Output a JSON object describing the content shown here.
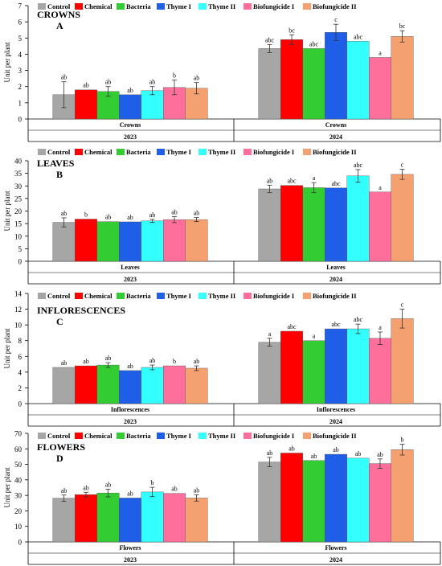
{
  "legend": [
    "Control",
    "Chemical",
    "Bacteria",
    "Thyme I",
    "Thyme II",
    "Biofungicide I",
    "Biofungicide II"
  ],
  "colors": [
    "#a6a6a6",
    "#ff0000",
    "#33cc33",
    "#1f5ee6",
    "#33ffff",
    "#ff6f9c",
    "#f4a070"
  ],
  "chart_data": [
    {
      "type": "bar",
      "title": "CROWNS",
      "panel_letter": "A",
      "ylabel": "Unit per plant",
      "ylim": [
        0,
        7
      ],
      "yticks": [
        0,
        1,
        2,
        3,
        4,
        5,
        6,
        7
      ],
      "groups": [
        {
          "category": "Crowns",
          "year": "2023",
          "values": [
            1.5,
            1.8,
            1.7,
            1.5,
            1.75,
            1.95,
            1.9
          ],
          "errors": [
            0.8,
            0.0,
            0.3,
            0.0,
            0.25,
            0.45,
            0.35
          ],
          "labels": [
            "ab",
            "ab",
            "ab",
            "ab",
            "ab",
            "b",
            "ab"
          ]
        },
        {
          "category": "Crowns",
          "year": "2024",
          "values": [
            4.35,
            4.9,
            4.35,
            5.35,
            4.8,
            3.8,
            5.1
          ],
          "errors": [
            0.25,
            0.3,
            0.0,
            0.5,
            0.0,
            0.0,
            0.35
          ],
          "labels": [
            "abc",
            "bc",
            "abc",
            "c",
            "abc",
            "a",
            "bc"
          ]
        }
      ]
    },
    {
      "type": "bar",
      "title": "LEAVES",
      "panel_letter": "B",
      "ylabel": "Unit per plant",
      "ylim": [
        0,
        40
      ],
      "yticks": [
        0,
        5,
        10,
        15,
        20,
        25,
        30,
        35,
        40
      ],
      "groups": [
        {
          "category": "Leaves",
          "year": "2023",
          "values": [
            15.5,
            16.8,
            15.8,
            15.7,
            16.1,
            16.6,
            16.6
          ],
          "errors": [
            1.8,
            0.0,
            0.0,
            0.0,
            0.6,
            1.2,
            0.8
          ],
          "labels": [
            "ab",
            "b",
            "ab",
            "ab",
            "ab",
            "ab",
            "ab"
          ]
        },
        {
          "category": "Leaves",
          "year": "2024",
          "values": [
            28.8,
            30.2,
            29.3,
            29.2,
            34.0,
            27.6,
            34.6
          ],
          "errors": [
            1.5,
            0.0,
            2.0,
            0.0,
            2.5,
            0.0,
            2.0
          ],
          "labels": [
            "ab",
            "abc",
            "a",
            "abc",
            "abc",
            "a",
            "c"
          ]
        }
      ]
    },
    {
      "type": "bar",
      "title": "INFLORESCENCES",
      "panel_letter": "C",
      "ylabel": "Unit per plant",
      "ylim": [
        0,
        14
      ],
      "yticks": [
        0,
        2,
        4,
        6,
        8,
        10,
        12,
        14
      ],
      "groups": [
        {
          "category": "Inflorescences",
          "year": "2023",
          "values": [
            4.6,
            4.8,
            4.9,
            4.2,
            4.6,
            4.8,
            4.5
          ],
          "errors": [
            0.0,
            0.0,
            0.3,
            0.0,
            0.3,
            0.0,
            0.3
          ],
          "labels": [
            "ab",
            "ab",
            "ab",
            "ab",
            "ab",
            "b",
            "ab"
          ]
        },
        {
          "category": "Inflorescences",
          "year": "2024",
          "values": [
            7.8,
            9.2,
            8.0,
            9.5,
            9.5,
            8.3,
            10.8
          ],
          "errors": [
            0.5,
            0.0,
            0.0,
            0.0,
            0.6,
            0.8,
            1.2
          ],
          "labels": [
            "a",
            "abc",
            "a",
            "abc",
            "abc",
            "a",
            "c"
          ]
        }
      ]
    },
    {
      "type": "bar",
      "title": "FLOWERS",
      "panel_letter": "D",
      "ylabel": "Unit per plant",
      "ylim": [
        0,
        70
      ],
      "yticks": [
        0,
        10,
        20,
        30,
        40,
        50,
        60,
        70
      ],
      "groups": [
        {
          "category": "Flowers",
          "year": "2023",
          "values": [
            28.2,
            30.5,
            31.5,
            28.3,
            32.2,
            31.3,
            28.3
          ],
          "errors": [
            2.0,
            1.5,
            2.5,
            0.0,
            3.0,
            0.0,
            2.0
          ],
          "labels": [
            "ab",
            "ab",
            "ab",
            "ab",
            "b",
            "ab",
            "ab"
          ]
        },
        {
          "category": "Flowers",
          "year": "2024",
          "values": [
            51.5,
            57.3,
            52.5,
            56.5,
            54.0,
            50.5,
            59.5
          ],
          "errors": [
            3.0,
            0.0,
            0.0,
            0.0,
            0.0,
            3.0,
            3.5
          ],
          "labels": [
            "ab",
            "ab",
            "ab",
            "ab",
            "ab",
            "ab",
            "b"
          ]
        }
      ]
    }
  ]
}
